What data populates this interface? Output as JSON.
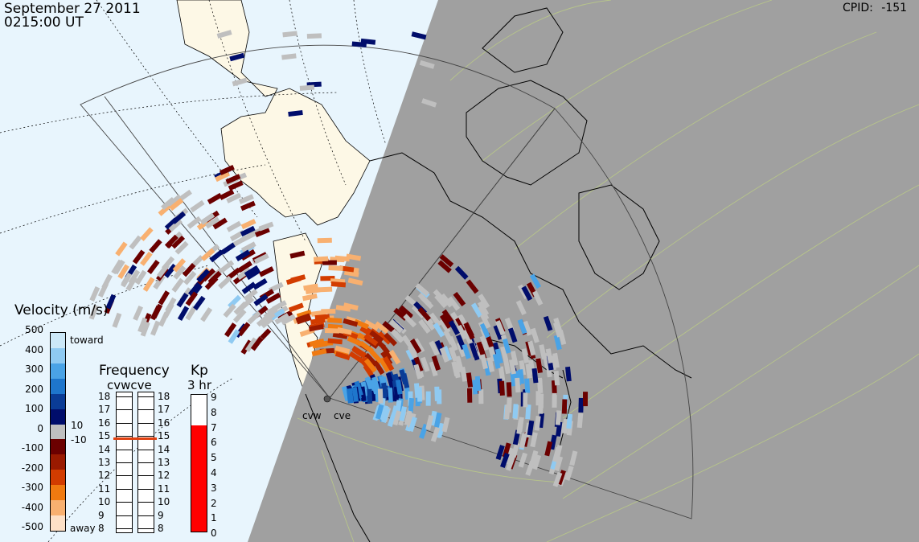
{
  "header": {
    "date": "September 27 2011",
    "time": "0215:00 UT",
    "cpid_label": "CPID:",
    "cpid_value": "-151"
  },
  "radars": {
    "labels": [
      "cvw",
      "cve"
    ]
  },
  "velocity_scale": {
    "title": "Velocity (m/s)",
    "ticks": [
      "500",
      "400",
      "300",
      "200",
      "100",
      "0",
      "-100",
      "-200",
      "-300",
      "-400",
      "-500"
    ],
    "toward_label": "toward",
    "away_label": "away",
    "threshold_pos": "10",
    "threshold_neg": "-10",
    "colors": {
      "toward": [
        "#cce8f8",
        "#8fcaf2",
        "#4aa3e6",
        "#1e76cc",
        "#0a3c96",
        "#000d6b"
      ],
      "ground": "#bfbfbf",
      "away": [
        "#6b0000",
        "#9a1a00",
        "#d23c00",
        "#f07a10",
        "#f8b070",
        "#fde0c6"
      ]
    }
  },
  "frequency": {
    "title": "Frequency",
    "subtitle": "cvwcve",
    "ticks": [
      "18",
      "17",
      "16",
      "15",
      "14",
      "13",
      "12",
      "11",
      "10",
      "9",
      "8"
    ],
    "cvw_mhz": 15,
    "cve_mhz": 15,
    "marker_color": "#e04010"
  },
  "kp": {
    "title": "Kp",
    "subtitle": "3 hr",
    "ticks": [
      "9",
      "8",
      "7",
      "6",
      "5",
      "4",
      "3",
      "2",
      "1",
      "0"
    ],
    "value": 7,
    "fill_color": "#ff0000"
  },
  "colors": {
    "night": "#a0a0a0",
    "day": "#e8f5fd",
    "land_day": "#fdf8e6",
    "grid": "#9bb87a",
    "ground_scatter": "#bfbfbf"
  }
}
